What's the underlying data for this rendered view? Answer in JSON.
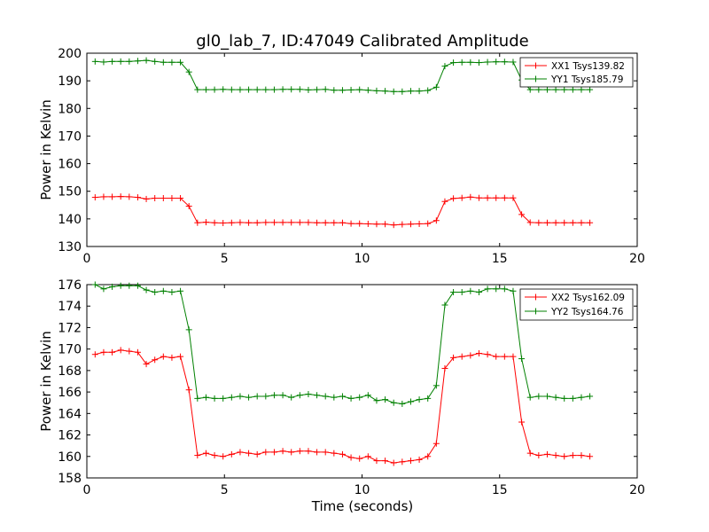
{
  "chart_data": [
    {
      "type": "line",
      "title": "gl0_lab_7, ID:47049 Calibrated Amplitude",
      "xlabel": "",
      "ylabel": "Power in Kelvin",
      "xlim": [
        0,
        20
      ],
      "ylim": [
        130,
        200
      ],
      "xticks": [
        0,
        5,
        10,
        15,
        20
      ],
      "yticks": [
        130,
        140,
        150,
        160,
        170,
        180,
        190,
        200
      ],
      "legend_position": "top-right",
      "grid": false,
      "series": [
        {
          "name": "XX1 Tsys139.82",
          "color": "#ff0000",
          "x": [
            0.3,
            0.61,
            0.92,
            1.23,
            1.54,
            1.85,
            2.16,
            2.47,
            2.78,
            3.09,
            3.4,
            3.71,
            4.02,
            4.33,
            4.64,
            4.95,
            5.26,
            5.57,
            5.88,
            6.19,
            6.5,
            6.81,
            7.12,
            7.43,
            7.74,
            8.05,
            8.36,
            8.67,
            8.98,
            9.29,
            9.6,
            9.91,
            10.22,
            10.53,
            10.84,
            11.15,
            11.46,
            11.77,
            12.08,
            12.39,
            12.7,
            13.01,
            13.32,
            13.63,
            13.94,
            14.25,
            14.56,
            14.87,
            15.18,
            15.49,
            15.8,
            16.11,
            16.42,
            16.73,
            17.04,
            17.35,
            17.66,
            17.97,
            18.28
          ],
          "values": [
            147.8,
            148.0,
            148.0,
            148.1,
            148.0,
            147.8,
            147.2,
            147.5,
            147.5,
            147.5,
            147.5,
            144.6,
            138.6,
            138.8,
            138.6,
            138.5,
            138.6,
            138.7,
            138.6,
            138.6,
            138.7,
            138.7,
            138.7,
            138.7,
            138.7,
            138.7,
            138.6,
            138.6,
            138.6,
            138.6,
            138.3,
            138.3,
            138.2,
            138.1,
            138.1,
            137.8,
            138.0,
            138.1,
            138.2,
            138.3,
            139.4,
            146.3,
            147.4,
            147.6,
            147.9,
            147.6,
            147.6,
            147.6,
            147.6,
            147.6,
            141.6,
            138.7,
            138.6,
            138.6,
            138.6,
            138.6,
            138.6,
            138.6,
            138.6
          ]
        },
        {
          "name": "YY1 Tsys185.79",
          "color": "#008000",
          "x": [
            0.3,
            0.61,
            0.92,
            1.23,
            1.54,
            1.85,
            2.16,
            2.47,
            2.78,
            3.09,
            3.4,
            3.71,
            4.02,
            4.33,
            4.64,
            4.95,
            5.26,
            5.57,
            5.88,
            6.19,
            6.5,
            6.81,
            7.12,
            7.43,
            7.74,
            8.05,
            8.36,
            8.67,
            8.98,
            9.29,
            9.6,
            9.91,
            10.22,
            10.53,
            10.84,
            11.15,
            11.46,
            11.77,
            12.08,
            12.39,
            12.7,
            13.01,
            13.32,
            13.63,
            13.94,
            14.25,
            14.56,
            14.87,
            15.18,
            15.49,
            15.8,
            16.11,
            16.42,
            16.73,
            17.04,
            17.35,
            17.66,
            17.97,
            18.28
          ],
          "values": [
            197.0,
            196.8,
            197.0,
            197.0,
            197.0,
            197.2,
            197.4,
            197.0,
            196.7,
            196.7,
            196.7,
            193.2,
            186.8,
            186.8,
            186.8,
            186.9,
            186.8,
            186.8,
            186.8,
            186.8,
            186.8,
            186.8,
            186.9,
            186.9,
            186.9,
            186.7,
            186.8,
            186.9,
            186.6,
            186.6,
            186.7,
            186.8,
            186.6,
            186.4,
            186.3,
            186.1,
            186.1,
            186.3,
            186.3,
            186.5,
            187.7,
            195.3,
            196.6,
            196.7,
            196.7,
            196.6,
            196.8,
            196.9,
            196.9,
            196.8,
            190.3,
            186.8,
            186.8,
            186.8,
            186.8,
            186.8,
            186.8,
            186.8,
            186.8
          ]
        }
      ]
    },
    {
      "type": "line",
      "title": "",
      "xlabel": "Time (seconds)",
      "ylabel": "Power in Kelvin",
      "xlim": [
        0,
        20
      ],
      "ylim": [
        158,
        176
      ],
      "xticks": [
        0,
        5,
        10,
        15,
        20
      ],
      "yticks": [
        158,
        160,
        162,
        164,
        166,
        168,
        170,
        172,
        174,
        176
      ],
      "legend_position": "top-right",
      "grid": false,
      "series": [
        {
          "name": "XX2 Tsys162.09",
          "color": "#ff0000",
          "x": [
            0.3,
            0.61,
            0.92,
            1.23,
            1.54,
            1.85,
            2.16,
            2.47,
            2.78,
            3.09,
            3.4,
            3.71,
            4.02,
            4.33,
            4.64,
            4.95,
            5.26,
            5.57,
            5.88,
            6.19,
            6.5,
            6.81,
            7.12,
            7.43,
            7.74,
            8.05,
            8.36,
            8.67,
            8.98,
            9.29,
            9.6,
            9.91,
            10.22,
            10.53,
            10.84,
            11.15,
            11.46,
            11.77,
            12.08,
            12.39,
            12.7,
            13.01,
            13.32,
            13.63,
            13.94,
            14.25,
            14.56,
            14.87,
            15.18,
            15.49,
            15.8,
            16.11,
            16.42,
            16.73,
            17.04,
            17.35,
            17.66,
            17.97,
            18.28
          ],
          "values": [
            169.5,
            169.7,
            169.7,
            169.9,
            169.8,
            169.7,
            168.6,
            169.0,
            169.3,
            169.2,
            169.3,
            166.2,
            160.1,
            160.3,
            160.1,
            160.0,
            160.2,
            160.4,
            160.3,
            160.2,
            160.4,
            160.4,
            160.5,
            160.4,
            160.5,
            160.5,
            160.4,
            160.4,
            160.3,
            160.2,
            159.9,
            159.8,
            160.0,
            159.6,
            159.6,
            159.4,
            159.5,
            159.6,
            159.7,
            160.0,
            161.2,
            168.2,
            169.2,
            169.3,
            169.4,
            169.6,
            169.5,
            169.3,
            169.3,
            169.3,
            163.2,
            160.3,
            160.1,
            160.2,
            160.1,
            160.0,
            160.1,
            160.1,
            160.0
          ]
        },
        {
          "name": "YY2 Tsys164.76",
          "color": "#008000",
          "x": [
            0.3,
            0.61,
            0.92,
            1.23,
            1.54,
            1.85,
            2.16,
            2.47,
            2.78,
            3.09,
            3.4,
            3.71,
            4.02,
            4.33,
            4.64,
            4.95,
            5.26,
            5.57,
            5.88,
            6.19,
            6.5,
            6.81,
            7.12,
            7.43,
            7.74,
            8.05,
            8.36,
            8.67,
            8.98,
            9.29,
            9.6,
            9.91,
            10.22,
            10.53,
            10.84,
            11.15,
            11.46,
            11.77,
            12.08,
            12.39,
            12.7,
            13.01,
            13.32,
            13.63,
            13.94,
            14.25,
            14.56,
            14.87,
            15.18,
            15.49,
            15.8,
            16.11,
            16.42,
            16.73,
            17.04,
            17.35,
            17.66,
            17.97,
            18.28
          ],
          "values": [
            176.0,
            175.6,
            175.8,
            175.9,
            175.9,
            175.9,
            175.5,
            175.3,
            175.4,
            175.3,
            175.4,
            171.8,
            165.4,
            165.5,
            165.4,
            165.4,
            165.5,
            165.6,
            165.5,
            165.6,
            165.6,
            165.7,
            165.7,
            165.5,
            165.7,
            165.8,
            165.7,
            165.6,
            165.5,
            165.6,
            165.4,
            165.5,
            165.7,
            165.2,
            165.3,
            165.0,
            164.9,
            165.1,
            165.3,
            165.4,
            166.6,
            174.1,
            175.3,
            175.3,
            175.4,
            175.3,
            175.6,
            175.6,
            175.6,
            175.4,
            169.1,
            165.5,
            165.6,
            165.6,
            165.5,
            165.4,
            165.4,
            165.5,
            165.6
          ]
        }
      ]
    }
  ]
}
